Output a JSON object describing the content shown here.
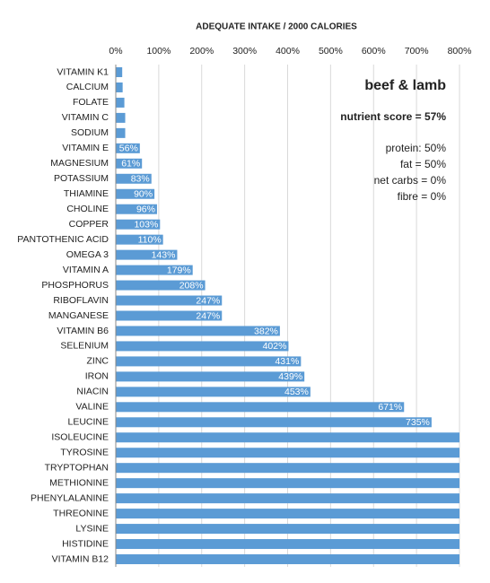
{
  "chart_data": {
    "type": "barh",
    "title": "ADEQUATE INTAKE / 2000 CALORIES",
    "categories": [
      "VITAMIN K1",
      "CALCIUM",
      "FOLATE",
      "VITAMIN C",
      "SODIUM",
      "VITAMIN E",
      "MAGNESIUM",
      "POTASSIUM",
      "THIAMINE",
      "CHOLINE",
      "COPPER",
      "PANTOTHENIC ACID",
      "OMEGA 3",
      "VITAMIN A",
      "PHOSPHORUS",
      "RIBOFLAVIN",
      "MANGANESE",
      "VITAMIN B6",
      "SELENIUM",
      "ZINC",
      "IRON",
      "NIACIN",
      "VALINE",
      "LEUCINE",
      "ISOLEUCINE",
      "TYROSINE",
      "TRYPTOPHAN",
      "METHIONINE",
      "PHENYLALANINE",
      "THREONINE",
      "LYSINE",
      "HISTIDINE",
      "VITAMIN B12"
    ],
    "values": [
      15,
      16,
      20,
      22,
      22,
      56,
      61,
      83,
      90,
      96,
      103,
      110,
      143,
      179,
      208,
      247,
      247,
      382,
      402,
      431,
      439,
      453,
      671,
      735,
      800,
      800,
      800,
      800,
      800,
      800,
      800,
      800,
      800
    ],
    "value_labels": [
      null,
      null,
      null,
      null,
      null,
      "56%",
      "61%",
      "83%",
      "90%",
      "96%",
      "103%",
      "110%",
      "143%",
      "179%",
      "208%",
      "247%",
      "247%",
      "382%",
      "402%",
      "431%",
      "439%",
      "453%",
      "671%",
      "735%",
      null,
      null,
      null,
      null,
      null,
      null,
      null,
      null,
      null
    ],
    "color": "#5b9bd5",
    "xlim": [
      0,
      800
    ],
    "xticks": [
      {
        "value": 0,
        "label": "0%"
      },
      {
        "value": 100,
        "label": "100%"
      },
      {
        "value": 200,
        "label": "200%"
      },
      {
        "value": 300,
        "label": "300%"
      },
      {
        "value": 400,
        "label": "400%"
      },
      {
        "value": 500,
        "label": "500%"
      },
      {
        "value": 600,
        "label": "600%"
      },
      {
        "value": 700,
        "label": "700%"
      },
      {
        "value": 800,
        "label": "800%"
      }
    ],
    "grid": true,
    "annotations": [
      "beef & lamb",
      "nutrient score = 57%",
      "protein: 50%",
      "fat = 50%",
      "net carbs = 0%",
      "fibre = 0%"
    ]
  }
}
